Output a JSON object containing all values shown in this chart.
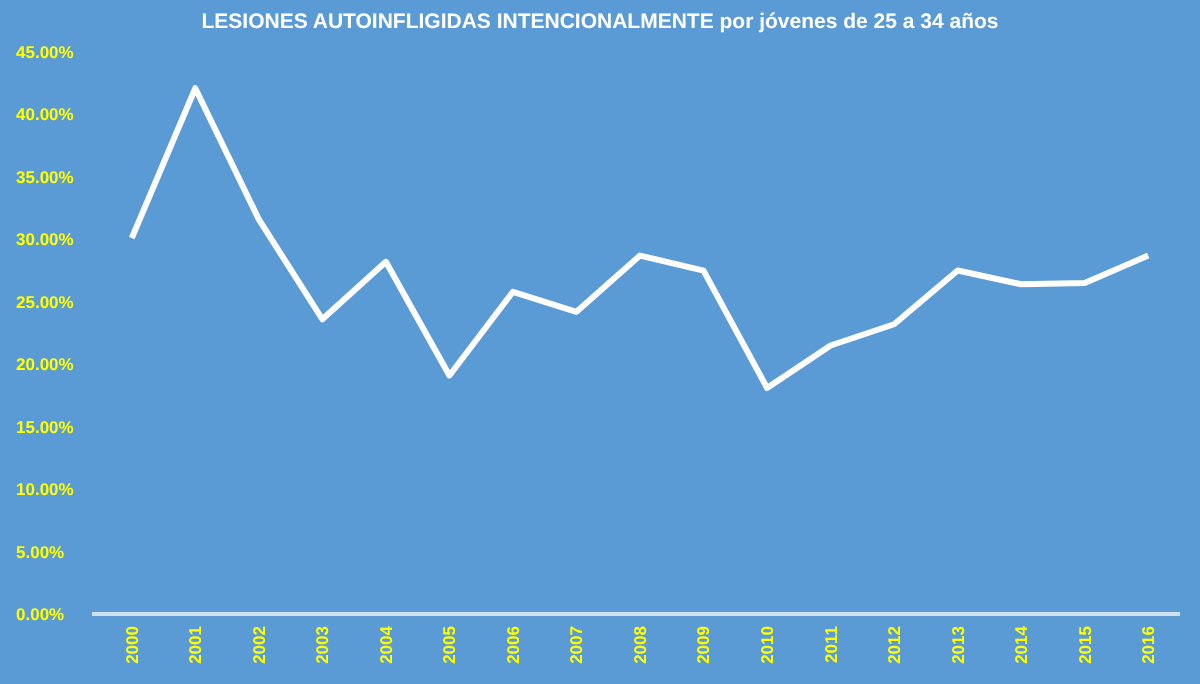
{
  "chart_data": {
    "type": "line",
    "title": "LESIONES AUTOINFLIGIDAS INTENCIONALMENTE por jóvenes de 25 a 34 años",
    "categories": [
      "2000",
      "2001",
      "2002",
      "2003",
      "2004",
      "2005",
      "2006",
      "2007",
      "2008",
      "2009",
      "2010",
      "2011",
      "2012",
      "2013",
      "2014",
      "2015",
      "2016"
    ],
    "series": [
      {
        "color": "#ffffff",
        "values": [
          30.1,
          42.1,
          31.6,
          23.6,
          28.2,
          19.1,
          25.8,
          24.2,
          28.7,
          27.5,
          18.1,
          21.5,
          23.2,
          27.5,
          26.4,
          26.5,
          28.7
        ]
      }
    ],
    "ylim": [
      0,
      45
    ],
    "yticks": [
      {
        "value": 0,
        "label": "0.00%"
      },
      {
        "value": 5,
        "label": "5.00%"
      },
      {
        "value": 10,
        "label": "10.00%"
      },
      {
        "value": 15,
        "label": "15.00%"
      },
      {
        "value": 20,
        "label": "20.00%"
      },
      {
        "value": 25,
        "label": "25.00%"
      },
      {
        "value": 30,
        "label": "30.00%"
      },
      {
        "value": 35,
        "label": "35.00%"
      },
      {
        "value": 40,
        "label": "40.00%"
      },
      {
        "value": 45,
        "label": "45.00%"
      }
    ],
    "line_style": "solid"
  }
}
